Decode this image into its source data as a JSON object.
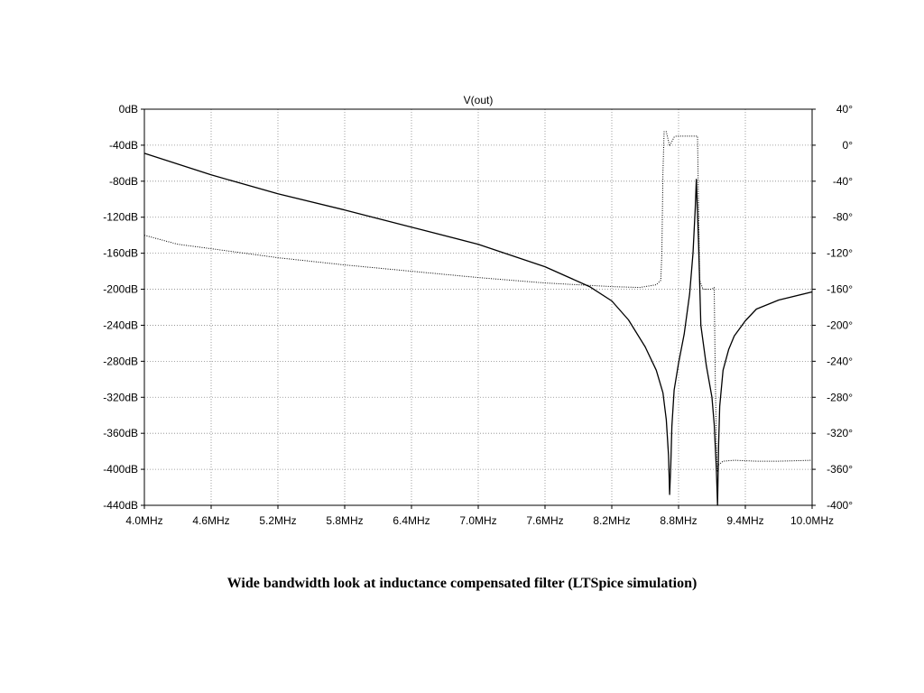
{
  "caption": "Wide bandwidth look at inductance compensated filter (LTSpice simulation)",
  "chart_data": {
    "type": "line",
    "title": "V(out)",
    "xlabel": "",
    "ylabel": "",
    "xlim": [
      4.0,
      10.0
    ],
    "ylim": [
      -440,
      0
    ],
    "y2lim": [
      -400,
      40
    ],
    "grid": true,
    "x_ticks": [
      4.0,
      4.6,
      5.2,
      5.8,
      6.4,
      7.0,
      7.6,
      8.2,
      8.8,
      9.4,
      10.0
    ],
    "x_tick_labels": [
      "4.0MHz",
      "4.6MHz",
      "5.2MHz",
      "5.8MHz",
      "6.4MHz",
      "7.0MHz",
      "7.6MHz",
      "8.2MHz",
      "8.8MHz",
      "9.4MHz",
      "10.0MHz"
    ],
    "y_ticks": [
      0,
      -40,
      -80,
      -120,
      -160,
      -200,
      -240,
      -280,
      -320,
      -360,
      -400,
      -440
    ],
    "y_tick_labels": [
      "0dB",
      "-40dB",
      "-80dB",
      "-120dB",
      "-160dB",
      "-200dB",
      "-240dB",
      "-280dB",
      "-320dB",
      "-360dB",
      "-400dB",
      "-440dB"
    ],
    "y2_ticks": [
      40,
      0,
      -40,
      -80,
      -120,
      -160,
      -200,
      -240,
      -280,
      -320,
      -360,
      -400
    ],
    "y2_tick_labels": [
      "40°",
      "0°",
      "-40°",
      "-80°",
      "-120°",
      "-160°",
      "-200°",
      "-240°",
      "-280°",
      "-320°",
      "-360°",
      "-400°"
    ],
    "series": [
      {
        "name": "",
        "axis": "left",
        "style": "solid",
        "color": "#000000",
        "x": [
          4.0,
          4.6,
          5.2,
          5.8,
          6.4,
          7.0,
          7.6,
          8.0,
          8.2,
          8.35,
          8.5,
          8.6,
          8.66,
          8.69,
          8.71,
          8.72,
          8.73,
          8.74,
          8.76,
          8.8,
          8.85,
          8.9,
          8.93,
          8.95,
          8.96,
          8.98,
          9.0,
          9.05,
          9.1,
          9.12,
          9.14,
          9.15,
          9.16,
          9.17,
          9.2,
          9.25,
          9.3,
          9.4,
          9.5,
          9.7,
          10.0
        ],
        "y": [
          -49,
          -73,
          -94,
          -112,
          -131,
          -150,
          -175,
          -197,
          -213,
          -234,
          -264,
          -290,
          -315,
          -345,
          -385,
          -428,
          -395,
          -352,
          -312,
          -282,
          -250,
          -205,
          -160,
          -110,
          -78,
          -150,
          -240,
          -285,
          -320,
          -350,
          -400,
          -440,
          -372,
          -330,
          -290,
          -267,
          -252,
          -235,
          -222,
          -212,
          -203
        ]
      },
      {
        "name": "",
        "axis": "right",
        "style": "dotted",
        "color": "#000000",
        "x": [
          4.0,
          4.3,
          4.6,
          5.2,
          5.8,
          6.4,
          7.0,
          7.6,
          8.2,
          8.45,
          8.6,
          8.64,
          8.65,
          8.66,
          8.67,
          8.69,
          8.72,
          8.76,
          8.78,
          8.79,
          8.8,
          8.9,
          8.97,
          8.99,
          9.02,
          9.1,
          9.12,
          9.13,
          9.14,
          9.15,
          9.16,
          9.2,
          9.3,
          9.5,
          9.7,
          10.0
        ],
        "y": [
          -100,
          -110,
          -115,
          -125,
          -133,
          -140,
          -147,
          -153,
          -157,
          -158,
          -155,
          -150,
          -120,
          -30,
          15,
          15,
          -1,
          9,
          10,
          10,
          10,
          10,
          10,
          -150,
          -160,
          -160,
          -158,
          -260,
          -330,
          -363,
          -355,
          -351,
          -350,
          -351,
          -351,
          -350
        ]
      }
    ]
  }
}
